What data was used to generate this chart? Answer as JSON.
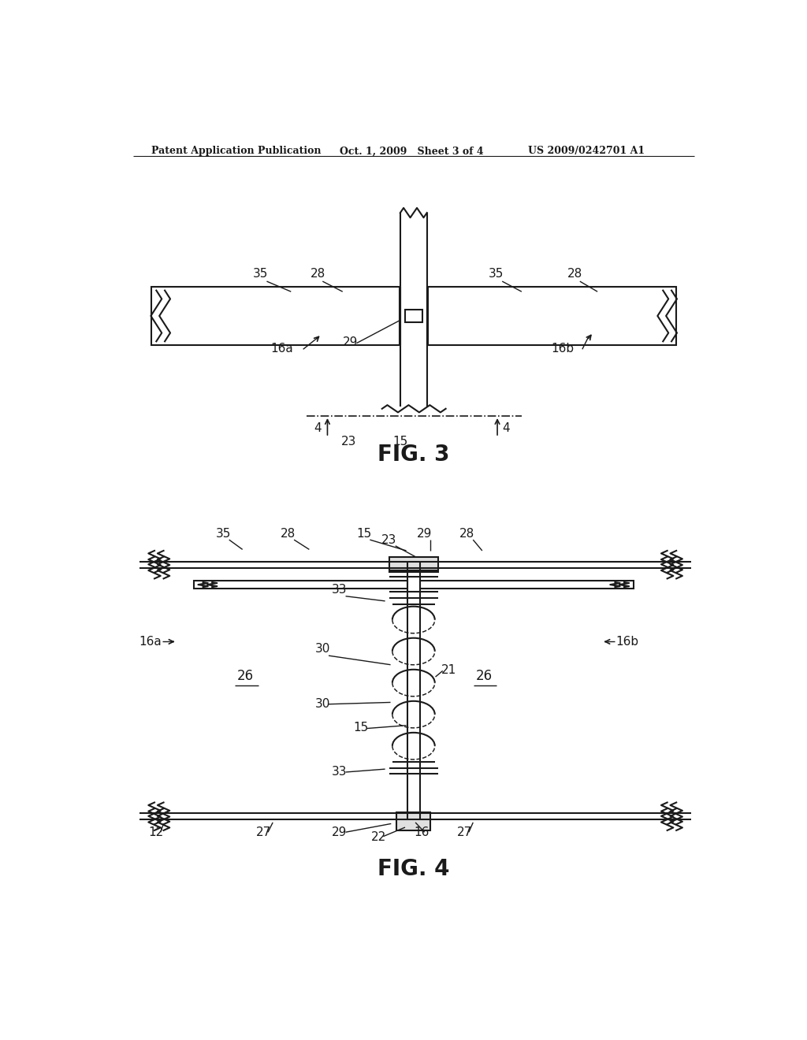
{
  "bg_color": "#ffffff",
  "line_color": "#1a1a1a",
  "header_left": "Patent Application Publication",
  "header_mid": "Oct. 1, 2009   Sheet 3 of 4",
  "header_right": "US 2009/0242701 A1",
  "fig3_label": "FIG. 3",
  "fig4_label": "FIG. 4"
}
